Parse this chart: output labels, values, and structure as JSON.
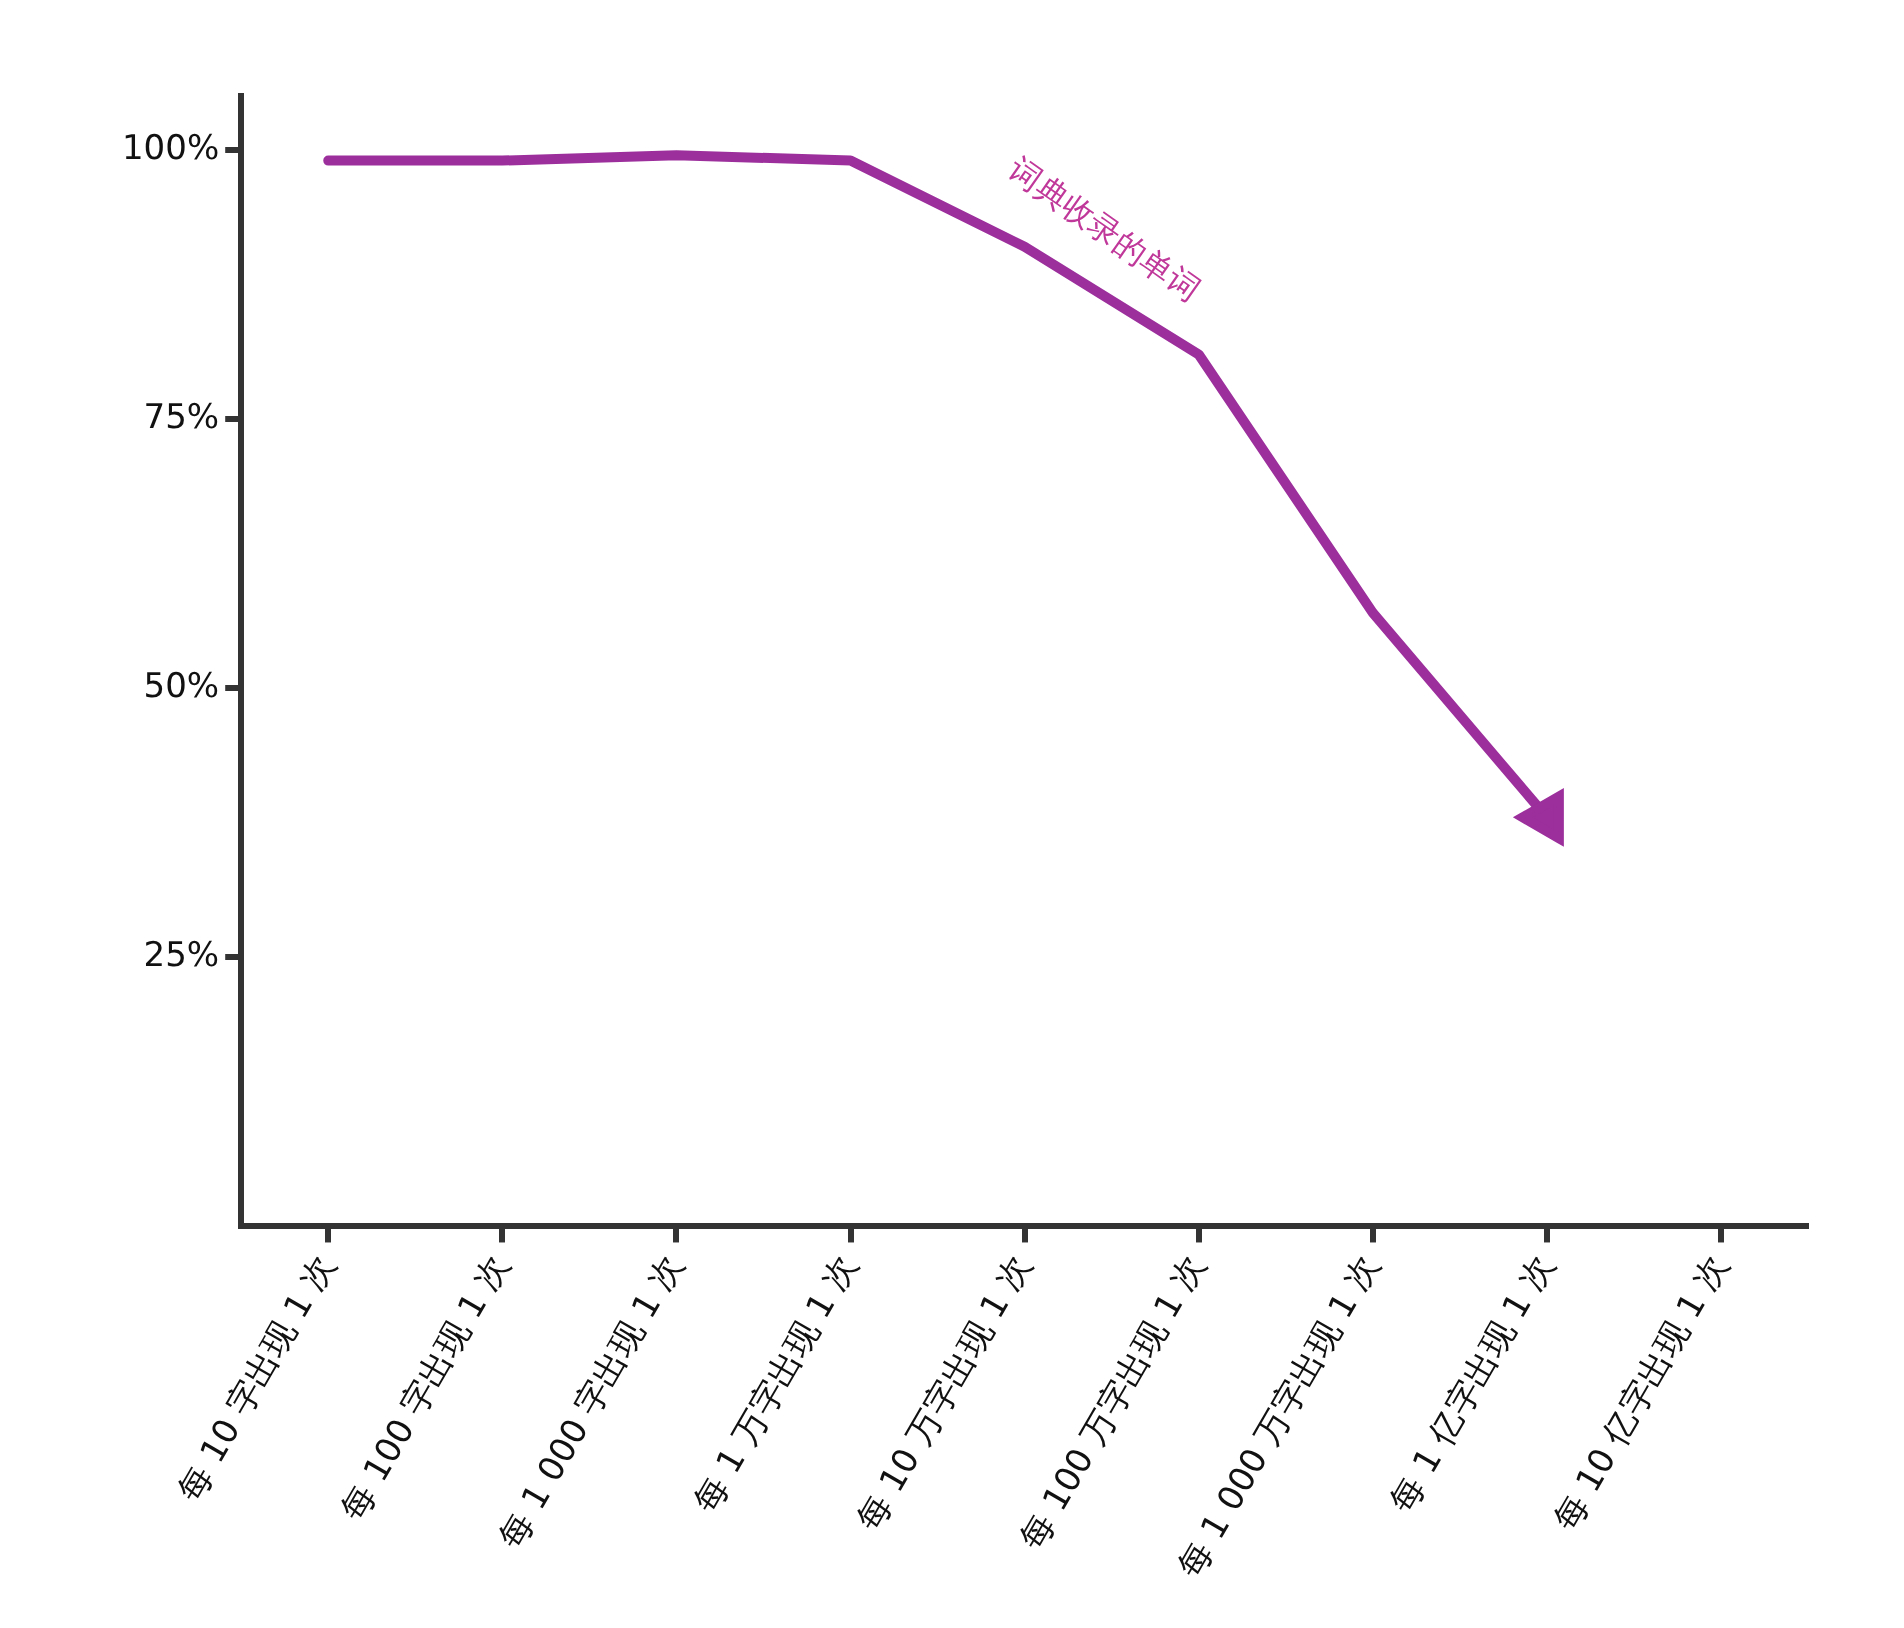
{
  "chart_data": {
    "type": "line",
    "categories": [
      "每 10 字出现 1 次",
      "每 100 字出现 1 次",
      "每 1 000 字出现 1 次",
      "每 1 万字出现 1 次",
      "每 10 万字出现 1 次",
      "每 100 万字出现 1 次",
      "每 1 000 万字出现 1 次",
      "每 1 亿字出现 1 次",
      "每 10 亿字出现 1 次"
    ],
    "series": [
      {
        "color": "#9c2f9c",
        "values": [
          99,
          99,
          99.5,
          99,
          91,
          81,
          57,
          38,
          null
        ]
      }
    ],
    "ylim": [
      0,
      105
    ],
    "yticks": [
      {
        "value": 25,
        "label": "25%"
      },
      {
        "value": 50,
        "label": "50%"
      },
      {
        "value": 75,
        "label": "75%"
      },
      {
        "value": 100,
        "label": "100%"
      }
    ],
    "annotations": [
      "词典收录的单词"
    ],
    "grid": false,
    "legend": false,
    "marker": "none",
    "line_style": "solid"
  }
}
